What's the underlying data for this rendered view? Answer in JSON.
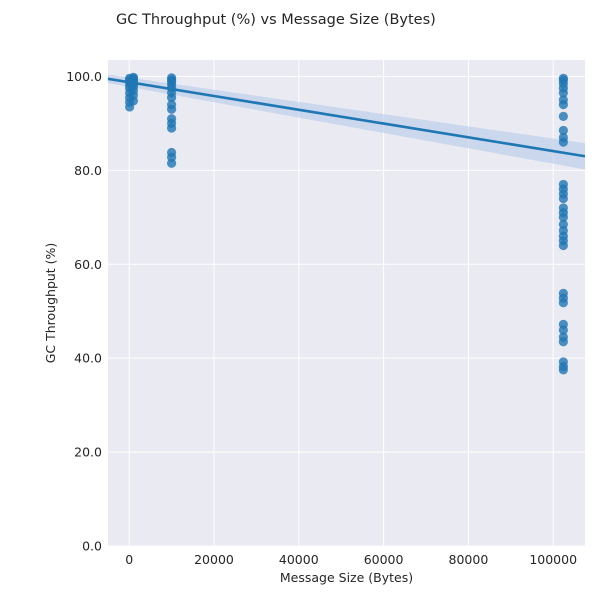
{
  "chart_data": {
    "type": "scatter",
    "title": "GC Throughput (%) vs Message Size (Bytes)",
    "xlabel": "Message Size (Bytes)",
    "ylabel": "GC Throughput (%)",
    "xlim": [
      -5000,
      107500
    ],
    "ylim": [
      0,
      103.5
    ],
    "xticks": [
      0,
      20000,
      40000,
      60000,
      80000,
      100000
    ],
    "yticks": [
      0,
      20,
      40,
      60,
      80,
      100
    ],
    "xtick_labels": [
      "0",
      "20000",
      "40000",
      "60000",
      "80000",
      "100000"
    ],
    "ytick_labels": [
      "0.0",
      "20.0",
      "40.0",
      "60.0",
      "80.0",
      "100.0"
    ],
    "grid": true,
    "background": "#eaeaf2",
    "point_color": "#1f77b4",
    "line_color": "#1f77b4",
    "band_color": "#aec7e8",
    "series": [
      {
        "x": 100,
        "y": [
          93.5,
          94.5,
          95.5,
          96.5,
          97.5,
          98.2,
          98.8,
          99.2,
          99.6
        ]
      },
      {
        "x": 1000,
        "y": [
          94.8,
          96.0,
          97.0,
          97.8,
          98.4,
          98.9,
          99.3,
          99.6,
          99.8
        ]
      },
      {
        "x": 10000,
        "y": [
          81.5,
          82.8,
          83.8,
          89.0,
          90.0,
          91.0,
          93.0,
          94.0,
          95.5,
          96.5,
          97.5,
          98.3,
          98.9,
          99.3,
          99.7
        ]
      },
      {
        "x": 102400,
        "y": [
          37.5,
          38.2,
          39.2,
          43.5,
          44.5,
          46.0,
          47.2,
          51.8,
          52.8,
          53.8,
          64.0,
          65.0,
          66.0,
          67.2,
          68.5,
          70.0,
          71.0,
          72.0,
          74.0,
          75.0,
          76.0,
          77.0,
          86.0,
          87.0,
          88.5,
          91.5,
          94.0,
          95.0,
          96.5,
          97.5,
          98.5,
          99.2,
          99.6
        ]
      }
    ],
    "regression": {
      "x": [
        -5000,
        107500
      ],
      "y": [
        99.5,
        83.0
      ],
      "ci_low": [
        98.6,
        80.2
      ],
      "ci_high": [
        100.4,
        85.8
      ]
    }
  }
}
